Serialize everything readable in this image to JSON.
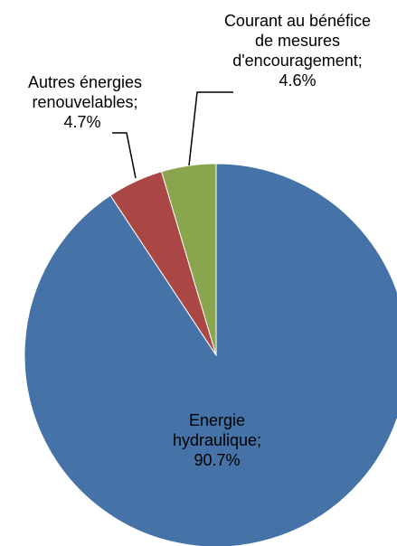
{
  "chart_data": {
    "type": "pie",
    "title": "",
    "start_angle_deg": 0,
    "direction": "clockwise",
    "slices": [
      {
        "label_lines": [
          "Energie",
          "hydraulique;",
          "90.7%"
        ],
        "value": 90.7,
        "color": "#4572a7"
      },
      {
        "label_lines": [
          "Autres énergies",
          "renouvelables;",
          "4.7%"
        ],
        "value": 4.7,
        "color": "#aa4643"
      },
      {
        "label_lines": [
          "Courant au bénéfice",
          "de mesures",
          "d'encouragement;",
          "4.6%"
        ],
        "value": 4.6,
        "color": "#89a54e"
      }
    ]
  }
}
